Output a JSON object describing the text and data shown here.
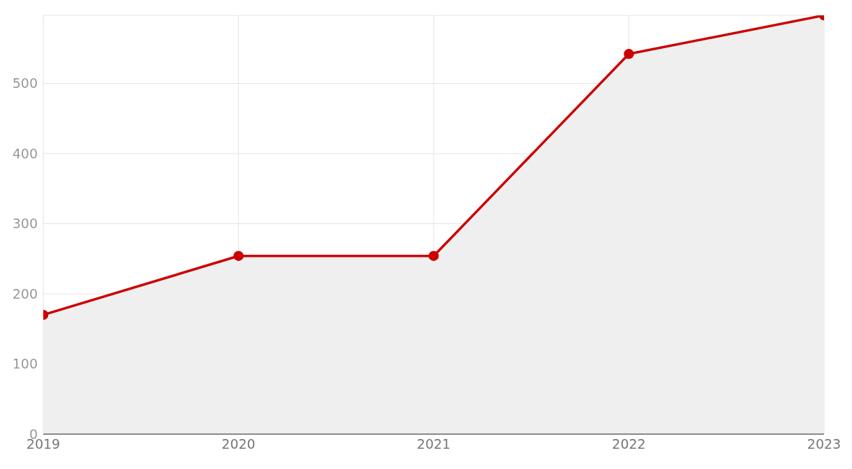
{
  "chart_data": {
    "type": "area",
    "categories": [
      "2019",
      "2020",
      "2021",
      "2022",
      "2023"
    ],
    "series": [
      {
        "color": "#cc0000",
        "values": [
          170,
          254,
          254,
          542,
          597
        ]
      }
    ],
    "ylim": [
      0,
      597
    ],
    "yticks": [
      0,
      100,
      200,
      300,
      400,
      500
    ],
    "grid": true,
    "marker": "circle",
    "line_style": "solid"
  }
}
